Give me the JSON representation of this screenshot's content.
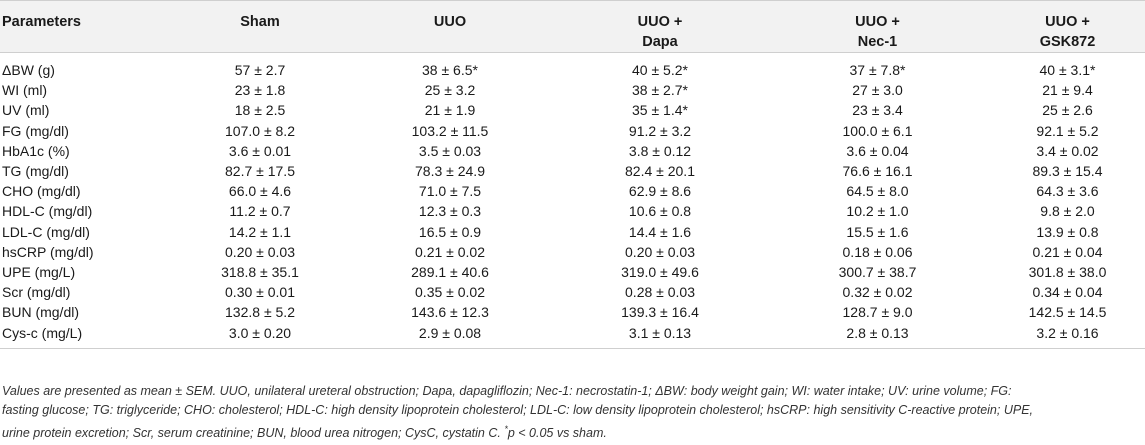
{
  "table": {
    "headers": [
      {
        "line1": "Parameters",
        "line2": ""
      },
      {
        "line1": "Sham",
        "line2": ""
      },
      {
        "line1": "UUO",
        "line2": ""
      },
      {
        "line1": "UUO +",
        "line2": "Dapa"
      },
      {
        "line1": "UUO +",
        "line2": "Nec-1"
      },
      {
        "line1": "UUO +",
        "line2": "GSK872"
      }
    ],
    "rows": [
      {
        "param": "ΔBW (g)",
        "sham": "57 ± 2.7",
        "uuo": "38 ± 6.5*",
        "dapa": "40 ± 5.2*",
        "nec1": "37 ± 7.8*",
        "gsk": "40 ± 3.1*"
      },
      {
        "param": "WI (ml)",
        "sham": "23 ± 1.8",
        "uuo": "25 ± 3.2",
        "dapa": "38 ± 2.7*",
        "nec1": "27 ± 3.0",
        "gsk": "21 ± 9.4"
      },
      {
        "param": "UV (ml)",
        "sham": "18 ± 2.5",
        "uuo": "21 ± 1.9",
        "dapa": "35 ± 1.4*",
        "nec1": "23 ± 3.4",
        "gsk": "25 ± 2.6"
      },
      {
        "param": "FG (mg/dl)",
        "sham": "107.0 ± 8.2",
        "uuo": "103.2 ± 11.5",
        "dapa": "91.2 ± 3.2",
        "nec1": "100.0 ± 6.1",
        "gsk": "92.1 ± 5.2"
      },
      {
        "param": "HbA1c (%)",
        "sham": "3.6 ± 0.01",
        "uuo": "3.5 ± 0.03",
        "dapa": "3.8 ± 0.12",
        "nec1": "3.6 ± 0.04",
        "gsk": "3.4 ± 0.02"
      },
      {
        "param": "TG (mg/dl)",
        "sham": "82.7 ± 17.5",
        "uuo": "78.3 ± 24.9",
        "dapa": "82.4 ± 20.1",
        "nec1": "76.6 ± 16.1",
        "gsk": "89.3 ± 15.4"
      },
      {
        "param": "CHO (mg/dl)",
        "sham": "66.0 ± 4.6",
        "uuo": "71.0 ± 7.5",
        "dapa": "62.9 ± 8.6",
        "nec1": "64.5 ± 8.0",
        "gsk": "64.3 ± 3.6"
      },
      {
        "param": "HDL-C (mg/dl)",
        "sham": "11.2 ± 0.7",
        "uuo": "12.3 ± 0.3",
        "dapa": "10.6 ± 0.8",
        "nec1": "10.2 ± 1.0",
        "gsk": "9.8 ± 2.0"
      },
      {
        "param": "LDL-C (mg/dl)",
        "sham": "14.2 ± 1.1",
        "uuo": "16.5 ± 0.9",
        "dapa": "14.4 ± 1.6",
        "nec1": "15.5 ± 1.6",
        "gsk": "13.9 ± 0.8"
      },
      {
        "param": "hsCRP (mg/dl)",
        "sham": "0.20 ± 0.03",
        "uuo": "0.21 ± 0.02",
        "dapa": "0.20 ± 0.03",
        "nec1": "0.18 ± 0.06",
        "gsk": "0.21 ± 0.04"
      },
      {
        "param": "UPE (mg/L)",
        "sham": "318.8 ± 35.1",
        "uuo": "289.1 ± 40.6",
        "dapa": "319.0 ± 49.6",
        "nec1": "300.7 ± 38.7",
        "gsk": "301.8 ± 38.0"
      },
      {
        "param": "Scr (mg/dl)",
        "sham": "0.30 ± 0.01",
        "uuo": "0.35 ± 0.02",
        "dapa": "0.28 ± 0.03",
        "nec1": "0.32 ± 0.02",
        "gsk": "0.34 ± 0.04"
      },
      {
        "param": "BUN (mg/dl)",
        "sham": "132.8 ± 5.2",
        "uuo": "143.6 ± 12.3",
        "dapa": "139.3 ± 16.4",
        "nec1": "128.7 ± 9.0",
        "gsk": "142.5 ± 14.5"
      },
      {
        "param": "Cys-c (mg/L)",
        "sham": "3.0 ± 0.20",
        "uuo": "2.9 ± 0.08",
        "dapa": "3.1 ± 0.13",
        "nec1": "2.8 ± 0.13",
        "gsk": "3.2 ± 0.16"
      }
    ]
  },
  "footnote": {
    "line1": "Values are presented as mean ± SEM. UUO, unilateral ureteral obstruction; Dapa, dapagliflozin; Nec-1: necrostatin-1; ΔBW: body weight gain; WI: water intake; UV: urine volume; FG:",
    "line2": "fasting glucose; TG: triglyceride; CHO: cholesterol; HDL-C: high density lipoprotein cholesterol; LDL-C: low density lipoprotein cholesterol; hsCRP: high sensitivity C-reactive protein; UPE,",
    "line3_main": "urine protein excretion; Scr, serum creatinine; BUN, blood urea nitrogen; CysC, cystatin C. ",
    "line3_ast": "*",
    "line3_end": "p < 0.05 vs sham."
  }
}
